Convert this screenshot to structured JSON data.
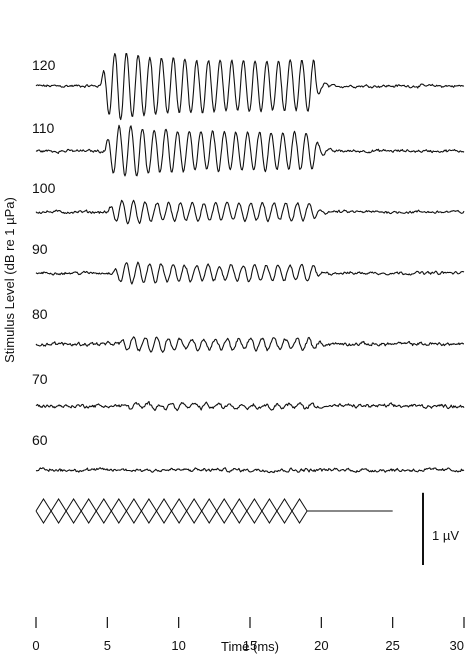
{
  "chart_data": {
    "type": "line",
    "xlabel": "Time (ms)",
    "ylabel": "Stimulus Level (dB re 1 µPa)",
    "xlim": [
      0,
      30
    ],
    "x_ticks": [
      "0",
      "5",
      "10",
      "15",
      "20",
      "25",
      "30"
    ],
    "x_tick_values": [
      0,
      5,
      10,
      15,
      20,
      25,
      30
    ],
    "scale_bar_label": "1 µV",
    "scale_bar_value_uV": 1,
    "stimulus": {
      "onset_ms": 0,
      "offset_ms": 19,
      "baseline_end_ms": 25,
      "cycles": 18
    },
    "series": [
      {
        "name": "120",
        "level_db": 120,
        "peak_amplitude_uV": 1.2,
        "onset_ms": 4.5,
        "noise_uV": 0.04
      },
      {
        "name": "110",
        "level_db": 110,
        "peak_amplitude_uV": 0.9,
        "onset_ms": 4.8,
        "noise_uV": 0.04
      },
      {
        "name": "100",
        "level_db": 100,
        "peak_amplitude_uV": 0.4,
        "onset_ms": 5.0,
        "noise_uV": 0.04
      },
      {
        "name": "90",
        "level_db": 90,
        "peak_amplitude_uV": 0.35,
        "onset_ms": 5.3,
        "noise_uV": 0.04
      },
      {
        "name": "80",
        "level_db": 80,
        "peak_amplitude_uV": 0.25,
        "onset_ms": 5.8,
        "noise_uV": 0.05
      },
      {
        "name": "70",
        "level_db": 70,
        "peak_amplitude_uV": 0.1,
        "onset_ms": 6.0,
        "noise_uV": 0.05
      },
      {
        "name": "60",
        "level_db": 60,
        "peak_amplitude_uV": 0.0,
        "onset_ms": 6.0,
        "noise_uV": 0.05
      }
    ]
  }
}
